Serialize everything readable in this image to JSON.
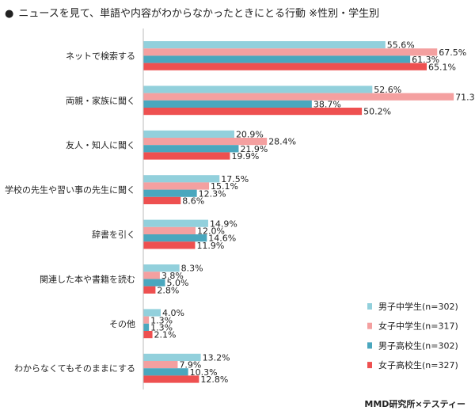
{
  "title": "ニュースを見て、単語や内容がわからなかったときにとる行動 ※性別・学生別",
  "title_bullet": "●",
  "credit": "MMD研究所×テスティー",
  "chart_data": {
    "type": "bar",
    "orientation": "horizontal",
    "title": "ニュースを見て、単語や内容がわからなかったときにとる行動 ※性別・学生別",
    "xlim": [
      0,
      80
    ],
    "grid": false,
    "legend_position": "bottom-right",
    "categories": [
      "ネットで検索する",
      "両親・家族に聞く",
      "友人・知人に聞く",
      "学校の先生や習い事の先生に聞く",
      "辞書を引く",
      "関連した本や書籍を読む",
      "その他",
      "わからなくてもそのままにする"
    ],
    "series": [
      {
        "name": "男子中学生(n=302)",
        "color": "#92d0dc",
        "values": [
          55.6,
          52.6,
          20.9,
          17.5,
          14.9,
          8.3,
          4.0,
          13.2
        ]
      },
      {
        "name": "女子中学生(n=317)",
        "color": "#f4a0a0",
        "values": [
          67.5,
          71.3,
          28.4,
          15.1,
          12.0,
          3.8,
          1.3,
          7.9
        ]
      },
      {
        "name": "男子高校生(n=302)",
        "color": "#4aa7be",
        "values": [
          61.3,
          38.7,
          21.9,
          12.3,
          14.6,
          5.0,
          1.3,
          10.3
        ]
      },
      {
        "name": "女子高校生(n=327)",
        "color": "#ee5050",
        "values": [
          65.1,
          50.2,
          19.9,
          8.6,
          11.9,
          2.8,
          2.1,
          12.8
        ]
      }
    ],
    "value_suffix": "%"
  }
}
